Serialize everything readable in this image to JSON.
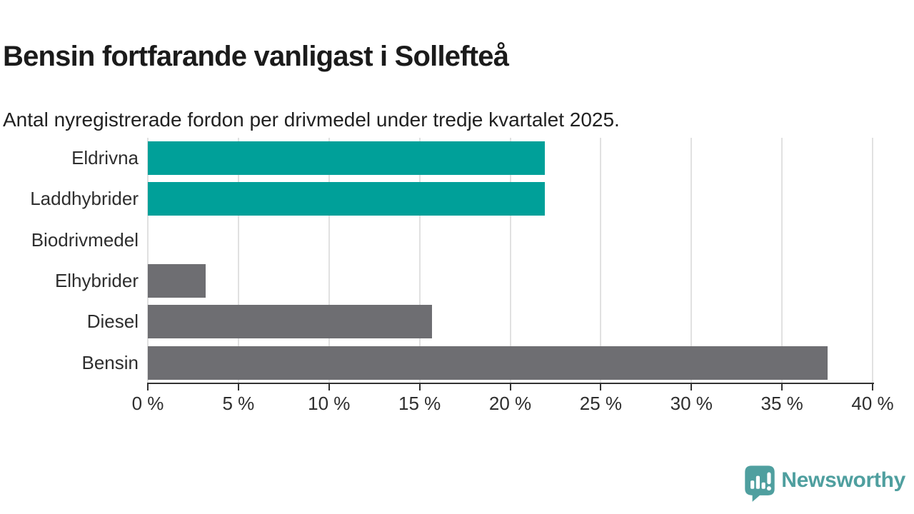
{
  "header": {
    "title": "Bensin fortfarande vanligast i Sollefteå",
    "subtitle": "Antal nyregistrerade fordon per drivmedel under tredje kvartalet 2025."
  },
  "chart_data": {
    "type": "bar",
    "orientation": "horizontal",
    "title": "Bensin fortfarande vanligast i Sollefteå",
    "subtitle": "Antal nyregistrerade fordon per drivmedel under tredje kvartalet 2025.",
    "categories": [
      "Eldrivna",
      "Laddhybrider",
      "Biodrivmedel",
      "Elhybrider",
      "Diesel",
      "Bensin"
    ],
    "values": [
      21.9,
      21.9,
      0,
      3.2,
      15.7,
      37.5
    ],
    "unit": "%",
    "bar_colors": [
      "#00a099",
      "#00a099",
      "#6e6e72",
      "#6e6e72",
      "#6e6e72",
      "#6e6e72"
    ],
    "xlim": [
      0,
      40
    ],
    "x_ticks": [
      0,
      5,
      10,
      15,
      20,
      25,
      30,
      35,
      40
    ],
    "tick_labels": [
      "0 %",
      "5 %",
      "10 %",
      "15 %",
      "20 %",
      "25 %",
      "30 %",
      "35 %",
      "40 %"
    ],
    "grid": true,
    "legend": "none"
  },
  "colors": {
    "teal": "#00a099",
    "gray": "#6e6e72",
    "gridline": "#e1e1e1",
    "axis": "#333333",
    "text": "#2e2e2e",
    "brand": "#4f9f9f"
  },
  "branding": {
    "logo_text": "Newsworthy",
    "logo_icon": "newsworthy-chart-bubble-icon"
  }
}
